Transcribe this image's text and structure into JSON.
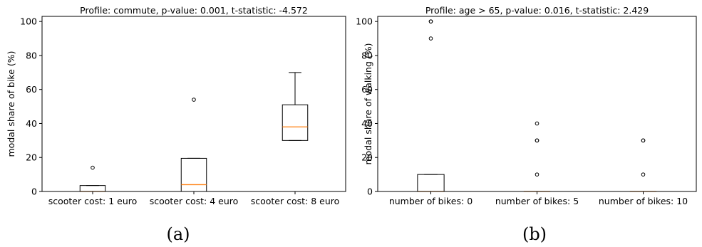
{
  "chart_data": [
    {
      "type": "box",
      "title": "Profile: commute, p-value: 0.001, t-statistic: -4.572",
      "xlabel": "",
      "ylabel": "modal share of bike (%)",
      "ylim": [
        0,
        103
      ],
      "yticks": [
        "0",
        "20",
        "40",
        "60",
        "80",
        "100"
      ],
      "caption": "(a)",
      "categories": [
        "scooter cost: 1 euro",
        "scooter cost: 4 euro",
        "scooter cost: 8 euro"
      ],
      "boxes": [
        {
          "whisker_low": 0,
          "q1": 0,
          "median": 0,
          "q3": 3.5,
          "whisker_high": 3.5,
          "outliers": [
            14
          ]
        },
        {
          "whisker_low": 0,
          "q1": 0,
          "median": 4,
          "q3": 19.5,
          "whisker_high": 19.5,
          "outliers": [
            54
          ]
        },
        {
          "whisker_low": 30,
          "q1": 30,
          "median": 38,
          "q3": 51,
          "whisker_high": 70,
          "outliers": []
        }
      ],
      "colors": {
        "box": "#000000",
        "median": "#ff7f0e"
      }
    },
    {
      "type": "box",
      "title": "Profile: age > 65, p-value: 0.016, t-statistic: 2.429",
      "xlabel": "",
      "ylabel": "modal share of walking (%)",
      "ylim": [
        0,
        103
      ],
      "yticks": [
        "0",
        "20",
        "40",
        "60",
        "80",
        "100"
      ],
      "caption": "(b)",
      "categories": [
        "number of bikes: 0",
        "number of bikes: 5",
        "number of bikes: 10"
      ],
      "boxes": [
        {
          "whisker_low": 0,
          "q1": 0,
          "median": 0,
          "q3": 10,
          "whisker_high": 10,
          "outliers": [
            90,
            100,
            100
          ]
        },
        {
          "whisker_low": 0,
          "q1": 0,
          "median": 0,
          "q3": 0,
          "whisker_high": 0,
          "outliers": [
            10,
            30,
            30,
            40
          ]
        },
        {
          "whisker_low": 0,
          "q1": 0,
          "median": 0,
          "q3": 0,
          "whisker_high": 0,
          "outliers": [
            10,
            30,
            30
          ]
        }
      ],
      "colors": {
        "box": "#000000",
        "median": "#ff7f0e"
      }
    }
  ]
}
